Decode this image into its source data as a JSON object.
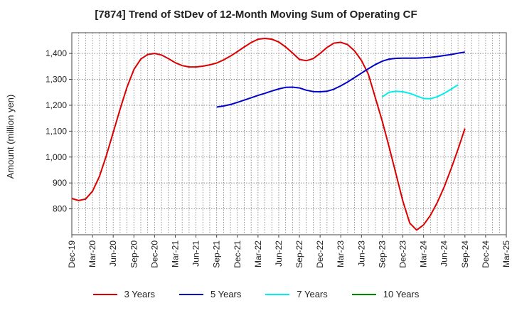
{
  "chart_data": {
    "type": "line",
    "title": "[7874]  Trend of StDev of 12-Month Moving Sum of Operating CF",
    "xlabel": "",
    "ylabel": "Amount (million yen)",
    "ylim": [
      700,
      1480
    ],
    "yticks": [
      800,
      900,
      1000,
      1100,
      1200,
      1300,
      1400
    ],
    "ytick_labels": [
      "800",
      "900",
      "1,000",
      "1,100",
      "1,200",
      "1,300",
      "1,400"
    ],
    "xtick_labels": [
      "Dec-19",
      "Mar-20",
      "Jun-20",
      "Sep-20",
      "Dec-20",
      "Mar-21",
      "Jun-21",
      "Sep-21",
      "Dec-21",
      "Mar-22",
      "Jun-22",
      "Sep-22",
      "Dec-22",
      "Mar-23",
      "Jun-23",
      "Sep-23",
      "Dec-23",
      "Mar-24",
      "Jun-24",
      "Sep-24",
      "Dec-24",
      "Mar-25"
    ],
    "x_start": "Dec-19",
    "grid": true,
    "legend_position": "bottom",
    "series": [
      {
        "name": "3 Years",
        "color": "#dd0000",
        "start": "Dec-19",
        "values": [
          840,
          832,
          838,
          868,
          925,
          1005,
          1095,
          1185,
          1270,
          1338,
          1378,
          1396,
          1400,
          1394,
          1380,
          1364,
          1353,
          1348,
          1348,
          1351,
          1356,
          1363,
          1375,
          1390,
          1407,
          1425,
          1442,
          1455,
          1458,
          1455,
          1444,
          1425,
          1402,
          1377,
          1372,
          1380,
          1400,
          1423,
          1440,
          1443,
          1434,
          1410,
          1373,
          1320,
          1230,
          1140,
          1040,
          935,
          830,
          745,
          718,
          738,
          775,
          825,
          885,
          955,
          1030,
          1110
        ]
      },
      {
        "name": "5 Years",
        "color": "#0000cc",
        "start": "Sep-21",
        "values": [
          1193,
          1197,
          1203,
          1211,
          1220,
          1229,
          1238,
          1246,
          1255,
          1263,
          1269,
          1270,
          1267,
          1258,
          1253,
          1252,
          1254,
          1262,
          1275,
          1290,
          1307,
          1324,
          1341,
          1357,
          1370,
          1378,
          1381,
          1382,
          1382,
          1382,
          1383,
          1385,
          1388,
          1392,
          1396,
          1401,
          1405
        ]
      },
      {
        "name": "7 Years",
        "color": "#00eeee",
        "start": "Sep-23",
        "values": [
          1232,
          1250,
          1254,
          1252,
          1246,
          1236,
          1226,
          1225,
          1233,
          1246,
          1262,
          1279
        ]
      },
      {
        "name": "10 Years",
        "color": "#008800",
        "start": "Sep-23",
        "values": []
      }
    ]
  }
}
